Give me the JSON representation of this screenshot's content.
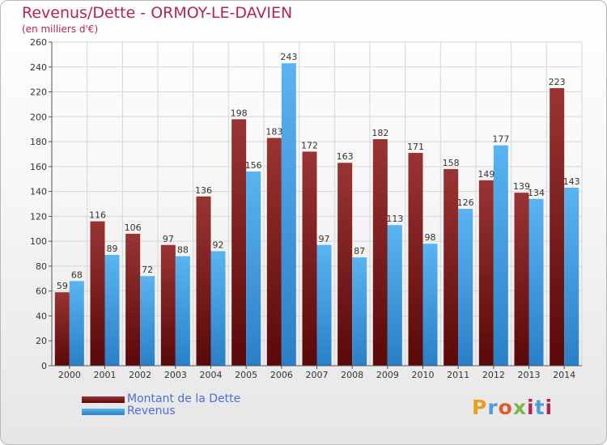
{
  "header": {
    "title": "Revenus/Dette - ORMOY-LE-DAVIEN",
    "subtitle": "(en milliers d'€)"
  },
  "chart_data": {
    "type": "bar",
    "categories": [
      "2000",
      "2001",
      "2002",
      "2003",
      "2004",
      "2005",
      "2006",
      "2007",
      "2008",
      "2009",
      "2010",
      "2011",
      "2012",
      "2013",
      "2014"
    ],
    "series": [
      {
        "name": "Montant de la Dette",
        "color": "#7a1c1c",
        "values": [
          59,
          116,
          106,
          97,
          136,
          198,
          183,
          172,
          163,
          182,
          171,
          158,
          149,
          139,
          223
        ]
      },
      {
        "name": "Revenus",
        "color": "#3a9ae0",
        "values": [
          68,
          89,
          72,
          88,
          92,
          156,
          243,
          97,
          87,
          113,
          98,
          126,
          177,
          134,
          143
        ]
      }
    ],
    "ylim": [
      0,
      260
    ],
    "yticks": [
      0,
      20,
      40,
      60,
      80,
      100,
      120,
      140,
      160,
      180,
      200,
      220,
      240,
      260
    ],
    "grid": true,
    "legend_position": "bottom-left"
  },
  "legend": {
    "items": [
      {
        "label": "Montant de la Dette",
        "color": "#7a1c1c"
      },
      {
        "label": "Revenus",
        "color": "#3a9ae0"
      }
    ]
  },
  "logo": {
    "text": "Proxiti"
  }
}
